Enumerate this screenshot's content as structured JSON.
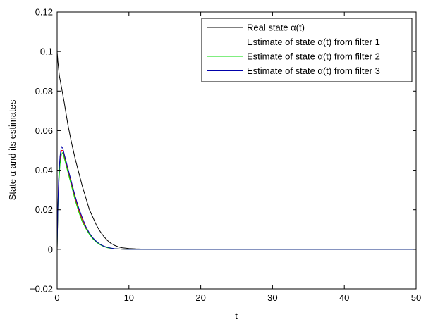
{
  "chart_data": {
    "type": "line",
    "title": "",
    "xlabel": "t",
    "ylabel": "State α and its estimates",
    "xlim": [
      0,
      50
    ],
    "ylim": [
      -0.02,
      0.12
    ],
    "x_ticks": [
      0,
      10,
      20,
      30,
      40,
      50
    ],
    "x_tick_labels": [
      "0",
      "10",
      "20",
      "30",
      "40",
      "50"
    ],
    "y_ticks": [
      -0.02,
      0,
      0.02,
      0.04,
      0.06,
      0.08,
      0.1,
      0.12
    ],
    "y_tick_labels": [
      "−0.02",
      "0",
      "0.02",
      "0.04",
      "0.06",
      "0.08",
      "0.1",
      "0.12"
    ],
    "grid": false,
    "legend_position": "top-right",
    "series": [
      {
        "name": "Real state α(t)",
        "color": "#000000",
        "x": [
          0,
          0.1,
          0.3,
          0.5,
          1,
          1.5,
          2,
          2.5,
          3,
          3.5,
          4,
          4.5,
          5,
          5.5,
          6,
          6.5,
          7,
          7.5,
          8,
          8.5,
          9,
          10,
          11,
          12,
          14,
          16,
          20,
          25,
          30,
          35,
          40,
          45,
          50
        ],
        "y": [
          0.1,
          0.095,
          0.088,
          0.084,
          0.074,
          0.063,
          0.054,
          0.046,
          0.039,
          0.032,
          0.026,
          0.02,
          0.016,
          0.012,
          0.009,
          0.0065,
          0.0045,
          0.003,
          0.002,
          0.0013,
          0.0008,
          0.0004,
          0.0002,
          0.0001,
          0,
          0,
          0,
          0,
          0,
          0,
          0,
          0,
          0
        ]
      },
      {
        "name": "Estimate of state α(t) from filter 1",
        "color": "#ff0000",
        "x": [
          0,
          0.1,
          0.2,
          0.4,
          0.6,
          0.8,
          1,
          1.5,
          2,
          2.5,
          3,
          3.5,
          4,
          4.5,
          5,
          5.5,
          6,
          6.5,
          7,
          7.5,
          8,
          9,
          10,
          11,
          12,
          14,
          16,
          20,
          25,
          30,
          35,
          40,
          45,
          50
        ],
        "y": [
          0,
          0.02,
          0.033,
          0.045,
          0.05,
          0.05,
          0.047,
          0.04,
          0.033,
          0.026,
          0.02,
          0.015,
          0.011,
          0.008,
          0.0055,
          0.0037,
          0.0024,
          0.0015,
          0.0009,
          0.0005,
          0.0003,
          0.0001,
          0,
          0,
          0,
          0,
          0,
          0,
          0,
          0,
          0,
          0,
          0,
          0
        ]
      },
      {
        "name": "Estimate of state α(t) from filter 2",
        "color": "#00dd00",
        "x": [
          0,
          0.1,
          0.2,
          0.4,
          0.6,
          0.8,
          1,
          1.5,
          2,
          2.5,
          3,
          3.5,
          4,
          4.5,
          5,
          5.5,
          6,
          6.5,
          7,
          7.5,
          8,
          9,
          10,
          11,
          12,
          14,
          16,
          20,
          25,
          30,
          35,
          40,
          45,
          50
        ],
        "y": [
          0,
          0.019,
          0.031,
          0.043,
          0.048,
          0.049,
          0.046,
          0.039,
          0.032,
          0.025,
          0.019,
          0.014,
          0.0105,
          0.0075,
          0.0052,
          0.0035,
          0.0023,
          0.0014,
          0.0008,
          0.0005,
          0.0003,
          0.0001,
          0,
          0,
          0,
          0,
          0,
          0,
          0,
          0,
          0,
          0,
          0,
          0
        ]
      },
      {
        "name": "Estimate of state α(t) from filter 3",
        "color": "#0000aa",
        "x": [
          0,
          0.1,
          0.2,
          0.4,
          0.6,
          0.8,
          1,
          1.5,
          2,
          2.5,
          3,
          3.5,
          4,
          4.5,
          5,
          5.5,
          6,
          6.5,
          7,
          7.5,
          8,
          9,
          10,
          11,
          12,
          14,
          16,
          20,
          25,
          30,
          35,
          40,
          45,
          50
        ],
        "y": [
          0,
          0.021,
          0.035,
          0.047,
          0.052,
          0.051,
          0.048,
          0.041,
          0.034,
          0.027,
          0.021,
          0.016,
          0.0115,
          0.0082,
          0.0057,
          0.0039,
          0.0025,
          0.0016,
          0.001,
          0.0006,
          0.0003,
          0.0001,
          0,
          0,
          0,
          0,
          0,
          0,
          0,
          0,
          0,
          0,
          0,
          0
        ]
      }
    ]
  }
}
